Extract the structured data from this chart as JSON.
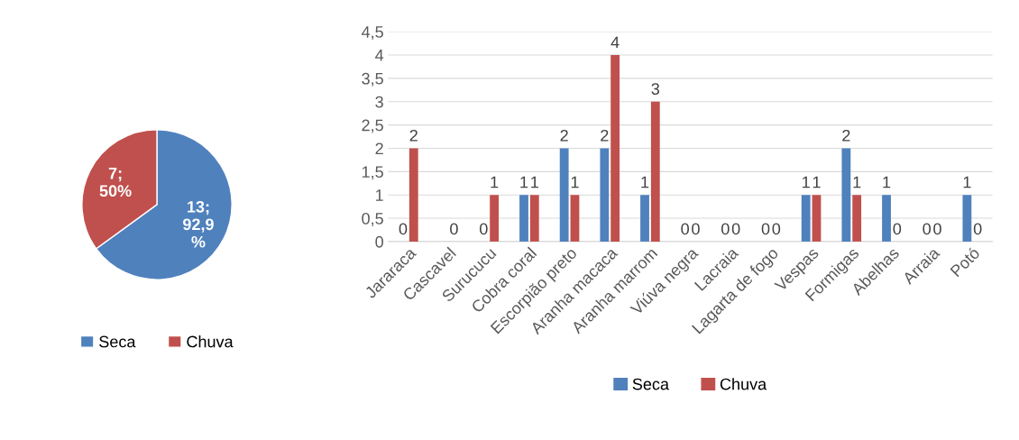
{
  "chart_data": [
    {
      "type": "pie",
      "categories": [
        "Seca",
        "Chuva"
      ],
      "values": [
        13,
        7
      ],
      "colors": [
        "#4f81bd",
        "#c0504d"
      ],
      "value_labels": [
        "13;\n92,9\n%",
        "7;\n50%"
      ],
      "legend": "bottom"
    },
    {
      "type": "bar",
      "categories": [
        "Jararaca",
        "Cascavel",
        "Surucucu",
        "Cobra coral",
        "Escorpião preto",
        "Aranha macaca",
        "Aranha marrom",
        "Viúva negra",
        "Lacraia",
        "Lagarta de fogo",
        "Vespas",
        "Formigas",
        "Abelhas",
        "Arraia",
        "Potó"
      ],
      "series": [
        {
          "name": "Seca",
          "color": "#4f81bd",
          "values": [
            0,
            null,
            0,
            1,
            2,
            2,
            1,
            0,
            0,
            0,
            1,
            2,
            1,
            0,
            1
          ]
        },
        {
          "name": "Chuva",
          "color": "#c0504d",
          "values": [
            2,
            0,
            1,
            1,
            1,
            4,
            3,
            0,
            0,
            0,
            1,
            1,
            0,
            0,
            0
          ]
        }
      ],
      "ylim": [
        0,
        4.5
      ],
      "yticks": [
        0,
        {
          "value": 0.5,
          "label": "0,5"
        },
        1,
        {
          "value": 1.5,
          "label": "1,5"
        },
        2,
        {
          "value": 2.5,
          "label": "2,5"
        },
        3,
        {
          "value": 3.5,
          "label": "3,5"
        },
        4,
        {
          "value": 4.5,
          "label": "4,5"
        }
      ],
      "grid": "y",
      "data_labels": true,
      "legend": "bottom"
    }
  ]
}
